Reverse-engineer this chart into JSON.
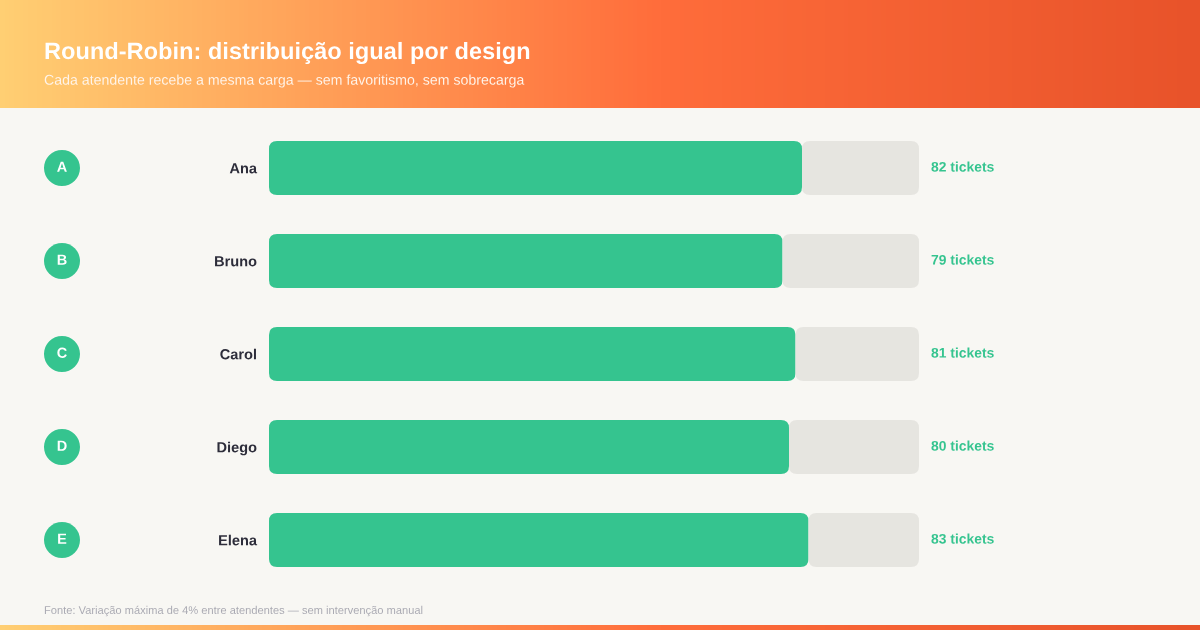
{
  "chart_data": {
    "type": "bar",
    "orientation": "horizontal",
    "stacked": true,
    "title": "Round-Robin: distribuição igual por design",
    "subtitle": "Cada atendente recebe a mesma carga — sem favoritismo, sem sobrecarga",
    "categories": [
      "Ana",
      "Bruno",
      "Carol",
      "Diego",
      "Elena"
    ],
    "series": [
      {
        "color": "#35c48f",
        "values": [
          82,
          79,
          81,
          80,
          83
        ],
        "value_labels": [
          "82 tickets",
          "79 tickets",
          "81 tickets",
          "80 tickets",
          "83 tickets"
        ]
      },
      {
        "color": "#e6e5e0",
        "values": [
          18,
          21,
          19,
          20,
          17
        ]
      }
    ],
    "xlim": [
      0,
      100
    ],
    "tick_labels": "y",
    "annotations": [
      "A",
      "B",
      "C",
      "D",
      "E",
      "Fonte: Variação máxima de 4% entre atendentes — sem intervenção manual"
    ]
  }
}
